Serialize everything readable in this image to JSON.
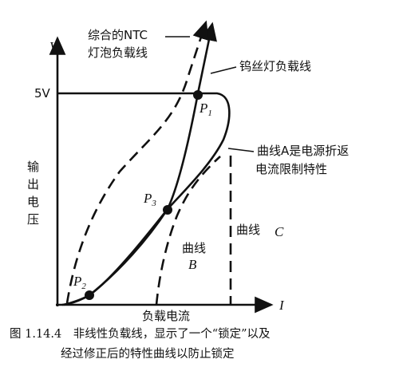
{
  "axes": {
    "y_label": "V",
    "y_value": "5V",
    "y_title": [
      "输",
      "出",
      "电",
      "压"
    ],
    "x_title": "负载电流",
    "x_label": "I"
  },
  "labels": {
    "ntc": [
      "综合的NTC",
      "灯泡负载线"
    ],
    "tungsten": "钨丝灯负载线",
    "curve_a": [
      "曲线A是电源折返",
      "电流限制特性"
    ],
    "curve_b": [
      "曲线",
      "B"
    ],
    "curve_c": [
      "曲线",
      "C"
    ]
  },
  "points": [
    {
      "letter": "P",
      "sub": "1"
    },
    {
      "letter": "P",
      "sub": "2"
    },
    {
      "letter": "P",
      "sub": "3"
    }
  ],
  "caption": [
    "图 1.14.4　非线性负载线，显示了一个“锁定”以及",
    "经过修正后的特性曲线以防止锁定"
  ]
}
